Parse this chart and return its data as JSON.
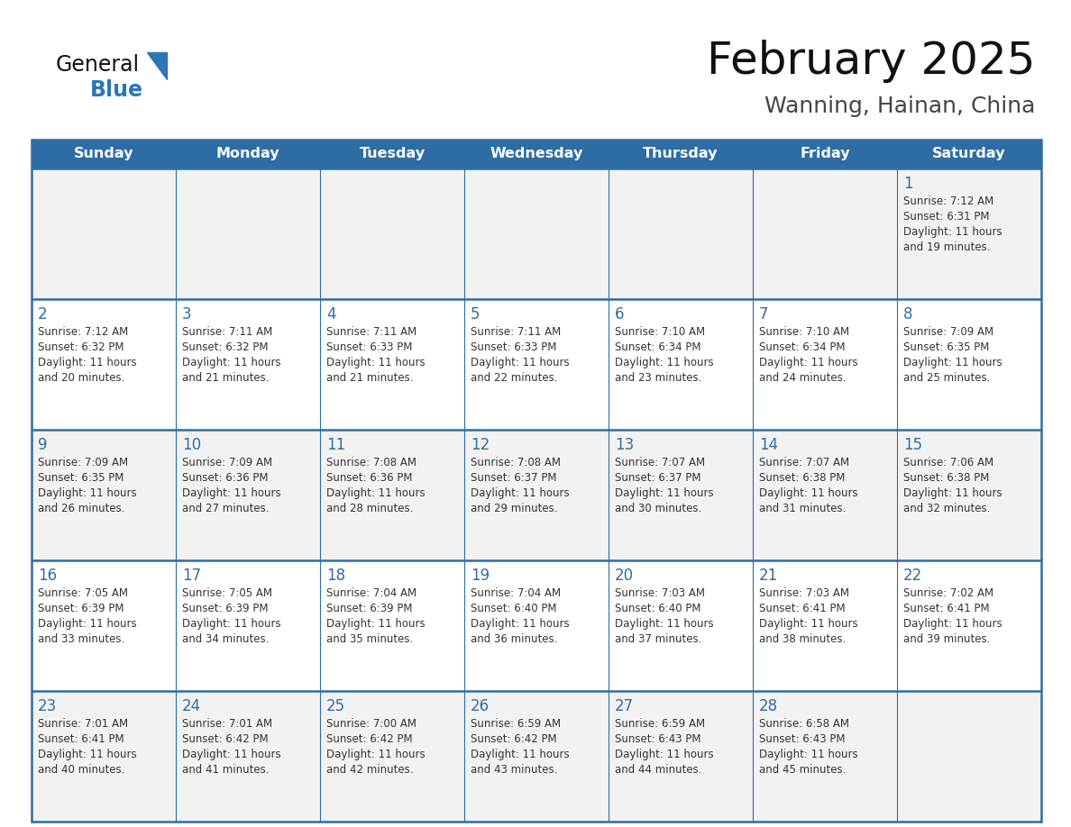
{
  "title": "February 2025",
  "subtitle": "Wanning, Hainan, China",
  "days_of_week": [
    "Sunday",
    "Monday",
    "Tuesday",
    "Wednesday",
    "Thursday",
    "Friday",
    "Saturday"
  ],
  "header_bg": "#2E6DA4",
  "header_text": "#FFFFFF",
  "cell_bg_odd": "#F2F2F2",
  "cell_bg_even": "#FFFFFF",
  "cell_text": "#333333",
  "border_color": "#2E6DA4",
  "day_number_color": "#2E6DA4",
  "logo_general_color": "#1a1a1a",
  "logo_blue_color": "#2E75B6",
  "calendar_data": [
    [
      null,
      null,
      null,
      null,
      null,
      null,
      {
        "day": 1,
        "sunrise": "7:12 AM",
        "sunset": "6:31 PM",
        "daylight": "11 hours and 19 minutes."
      }
    ],
    [
      {
        "day": 2,
        "sunrise": "7:12 AM",
        "sunset": "6:32 PM",
        "daylight": "11 hours and 20 minutes."
      },
      {
        "day": 3,
        "sunrise": "7:11 AM",
        "sunset": "6:32 PM",
        "daylight": "11 hours and 21 minutes."
      },
      {
        "day": 4,
        "sunrise": "7:11 AM",
        "sunset": "6:33 PM",
        "daylight": "11 hours and 21 minutes."
      },
      {
        "day": 5,
        "sunrise": "7:11 AM",
        "sunset": "6:33 PM",
        "daylight": "11 hours and 22 minutes."
      },
      {
        "day": 6,
        "sunrise": "7:10 AM",
        "sunset": "6:34 PM",
        "daylight": "11 hours and 23 minutes."
      },
      {
        "day": 7,
        "sunrise": "7:10 AM",
        "sunset": "6:34 PM",
        "daylight": "11 hours and 24 minutes."
      },
      {
        "day": 8,
        "sunrise": "7:09 AM",
        "sunset": "6:35 PM",
        "daylight": "11 hours and 25 minutes."
      }
    ],
    [
      {
        "day": 9,
        "sunrise": "7:09 AM",
        "sunset": "6:35 PM",
        "daylight": "11 hours and 26 minutes."
      },
      {
        "day": 10,
        "sunrise": "7:09 AM",
        "sunset": "6:36 PM",
        "daylight": "11 hours and 27 minutes."
      },
      {
        "day": 11,
        "sunrise": "7:08 AM",
        "sunset": "6:36 PM",
        "daylight": "11 hours and 28 minutes."
      },
      {
        "day": 12,
        "sunrise": "7:08 AM",
        "sunset": "6:37 PM",
        "daylight": "11 hours and 29 minutes."
      },
      {
        "day": 13,
        "sunrise": "7:07 AM",
        "sunset": "6:37 PM",
        "daylight": "11 hours and 30 minutes."
      },
      {
        "day": 14,
        "sunrise": "7:07 AM",
        "sunset": "6:38 PM",
        "daylight": "11 hours and 31 minutes."
      },
      {
        "day": 15,
        "sunrise": "7:06 AM",
        "sunset": "6:38 PM",
        "daylight": "11 hours and 32 minutes."
      }
    ],
    [
      {
        "day": 16,
        "sunrise": "7:05 AM",
        "sunset": "6:39 PM",
        "daylight": "11 hours and 33 minutes."
      },
      {
        "day": 17,
        "sunrise": "7:05 AM",
        "sunset": "6:39 PM",
        "daylight": "11 hours and 34 minutes."
      },
      {
        "day": 18,
        "sunrise": "7:04 AM",
        "sunset": "6:39 PM",
        "daylight": "11 hours and 35 minutes."
      },
      {
        "day": 19,
        "sunrise": "7:04 AM",
        "sunset": "6:40 PM",
        "daylight": "11 hours and 36 minutes."
      },
      {
        "day": 20,
        "sunrise": "7:03 AM",
        "sunset": "6:40 PM",
        "daylight": "11 hours and 37 minutes."
      },
      {
        "day": 21,
        "sunrise": "7:03 AM",
        "sunset": "6:41 PM",
        "daylight": "11 hours and 38 minutes."
      },
      {
        "day": 22,
        "sunrise": "7:02 AM",
        "sunset": "6:41 PM",
        "daylight": "11 hours and 39 minutes."
      }
    ],
    [
      {
        "day": 23,
        "sunrise": "7:01 AM",
        "sunset": "6:41 PM",
        "daylight": "11 hours and 40 minutes."
      },
      {
        "day": 24,
        "sunrise": "7:01 AM",
        "sunset": "6:42 PM",
        "daylight": "11 hours and 41 minutes."
      },
      {
        "day": 25,
        "sunrise": "7:00 AM",
        "sunset": "6:42 PM",
        "daylight": "11 hours and 42 minutes."
      },
      {
        "day": 26,
        "sunrise": "6:59 AM",
        "sunset": "6:42 PM",
        "daylight": "11 hours and 43 minutes."
      },
      {
        "day": 27,
        "sunrise": "6:59 AM",
        "sunset": "6:43 PM",
        "daylight": "11 hours and 44 minutes."
      },
      {
        "day": 28,
        "sunrise": "6:58 AM",
        "sunset": "6:43 PM",
        "daylight": "11 hours and 45 minutes."
      },
      null
    ]
  ]
}
